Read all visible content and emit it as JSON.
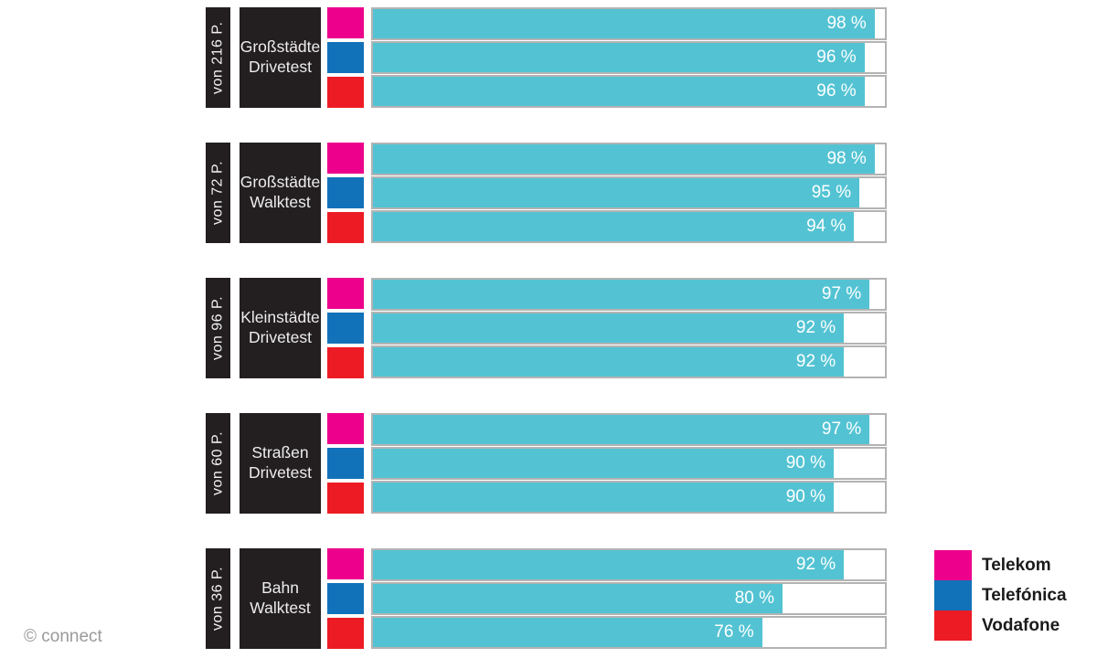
{
  "chart_data": {
    "type": "bar",
    "orientation": "horizontal",
    "unit": "%",
    "xlim": [
      0,
      100
    ],
    "bar_color": "#53c3d3",
    "track_border_color": "#b3b3b3",
    "label_box_color": "#231f20",
    "value_label_format": "{v} %",
    "categories": [
      "Großstädte Drivetest",
      "Großstädte Walktest",
      "Kleinstädte Drivetest",
      "Straßen Drivetest",
      "Bahn Walktest"
    ],
    "groups": [
      {
        "points": "von 216 P.",
        "label_lines": [
          "Großstädte",
          "Drivetest"
        ],
        "values": [
          98,
          96,
          96
        ]
      },
      {
        "points": "von 72 P.",
        "label_lines": [
          "Großstädte",
          "Walktest"
        ],
        "values": [
          98,
          95,
          94
        ]
      },
      {
        "points": "von 96 P.",
        "label_lines": [
          "Kleinstädte",
          "Drivetest"
        ],
        "values": [
          97,
          92,
          92
        ]
      },
      {
        "points": "von 60 P.",
        "label_lines": [
          "Straßen",
          "Drivetest"
        ],
        "values": [
          97,
          90,
          90
        ]
      },
      {
        "points": "von 36 P.",
        "label_lines": [
          "Bahn",
          "Walktest"
        ],
        "values": [
          92,
          80,
          76
        ]
      }
    ],
    "series": [
      {
        "name": "Telekom",
        "color": "#ec008c",
        "values": [
          98,
          98,
          97,
          97,
          92
        ]
      },
      {
        "name": "Telefónica",
        "color": "#1272b9",
        "values": [
          96,
          95,
          92,
          90,
          80
        ]
      },
      {
        "name": "Vodafone",
        "color": "#ed1c24",
        "values": [
          96,
          94,
          92,
          90,
          76
        ]
      }
    ],
    "legend_position": "bottom-right"
  },
  "legend": {
    "items": [
      {
        "label": "Telekom",
        "color": "#ec008c"
      },
      {
        "label": "Telefónica",
        "color": "#1272b9"
      },
      {
        "label": "Vodafone",
        "color": "#ed1c24"
      }
    ]
  },
  "footer": {
    "credit": "© connect"
  }
}
